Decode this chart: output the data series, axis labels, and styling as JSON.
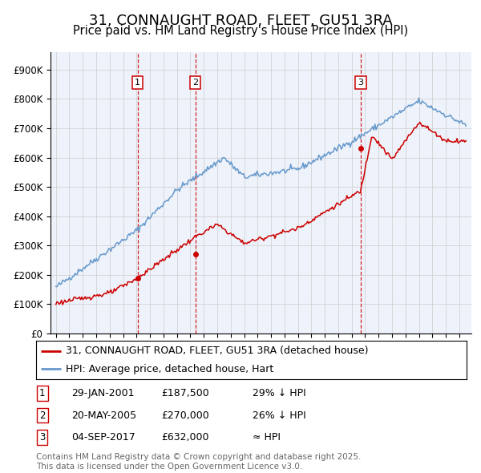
{
  "title": "31, CONNAUGHT ROAD, FLEET, GU51 3RA",
  "subtitle": "Price paid vs. HM Land Registry's House Price Index (HPI)",
  "ylim": [
    0,
    960000
  ],
  "yticks": [
    0,
    100000,
    200000,
    300000,
    400000,
    500000,
    600000,
    700000,
    800000,
    900000
  ],
  "ytick_labels": [
    "£0",
    "£100K",
    "£200K",
    "£300K",
    "£400K",
    "£500K",
    "£600K",
    "£700K",
    "£800K",
    "£900K"
  ],
  "sales": [
    {
      "date_num": 2001.08,
      "price": 187500,
      "label": "1"
    },
    {
      "date_num": 2005.38,
      "price": 270000,
      "label": "2"
    },
    {
      "date_num": 2017.67,
      "price": 632000,
      "label": "3"
    }
  ],
  "sale_color": "#cc0000",
  "hpi_color": "#6699cc",
  "bg_color": "#eef2fa",
  "grid_color": "#cccccc",
  "box_color": "#cc0000",
  "legend_label_red": "31, CONNAUGHT ROAD, FLEET, GU51 3RA (detached house)",
  "legend_label_blue": "HPI: Average price, detached house, Hart",
  "table_rows": [
    {
      "num": "1",
      "date": "29-JAN-2001",
      "price": "£187,500",
      "rel": "29% ↓ HPI"
    },
    {
      "num": "2",
      "date": "20-MAY-2005",
      "price": "£270,000",
      "rel": "26% ↓ HPI"
    },
    {
      "num": "3",
      "date": "04-SEP-2017",
      "price": "£632,000",
      "rel": "≈ HPI"
    }
  ],
  "footer": "Contains HM Land Registry data © Crown copyright and database right 2025.\nThis data is licensed under the Open Government Licence v3.0.",
  "title_fontsize": 13,
  "subtitle_fontsize": 10.5,
  "tick_fontsize": 8.5,
  "legend_fontsize": 9,
  "table_fontsize": 9,
  "footer_fontsize": 7.5
}
